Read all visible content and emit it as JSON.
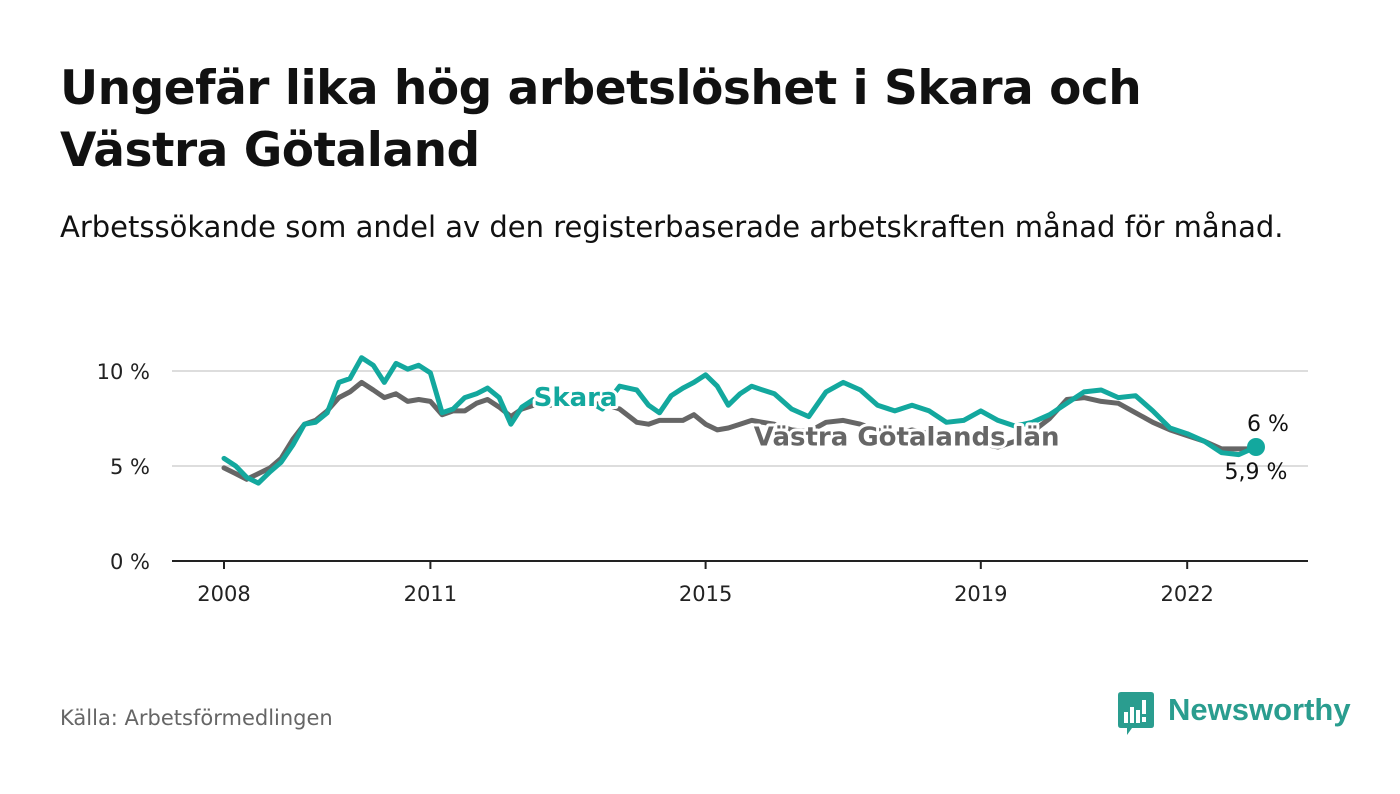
{
  "title": "Ungefär lika hög arbetslöshet i Skara och Västra Götaland",
  "subtitle": "Arbetssökande som andel av den registerbaserade arbetskraften månad för månad.",
  "source": "Källa: Arbetsförmedlingen",
  "brand": "Newsworthy",
  "icons": {
    "brand": "newsworthy-logo-icon"
  },
  "colors": {
    "skara": "#13a89e",
    "vg": "#666666",
    "grid": "#dddddd",
    "axis": "#222222",
    "brand": "#2a9d8f"
  },
  "chart_data": {
    "type": "line",
    "title": "Ungefär lika hög arbetslöshet i Skara och Västra Götaland",
    "xlabel": "",
    "ylabel": "",
    "xlim": [
      2008.0,
      2023.0
    ],
    "ylim": [
      0,
      10
    ],
    "y_ticks": [
      0,
      5,
      10
    ],
    "y_tick_labels": [
      "0 %",
      "5 %",
      "10 %"
    ],
    "x_ticks": [
      2008,
      2011,
      2015,
      2019,
      2022
    ],
    "x_tick_labels": [
      "2008",
      "2011",
      "2015",
      "2019",
      "2022"
    ],
    "grid": true,
    "series": [
      {
        "name": "Skara",
        "label": "Skara",
        "end_label": "6 %",
        "x": [
          2008.0,
          2008.17,
          2008.33,
          2008.5,
          2008.67,
          2008.83,
          2009.0,
          2009.17,
          2009.33,
          2009.5,
          2009.67,
          2009.83,
          2010.0,
          2010.17,
          2010.33,
          2010.5,
          2010.67,
          2010.83,
          2011.0,
          2011.17,
          2011.33,
          2011.5,
          2011.67,
          2011.83,
          2012.0,
          2012.17,
          2012.33,
          2012.5,
          2012.75,
          2013.0,
          2013.25,
          2013.5,
          2013.75,
          2014.0,
          2014.17,
          2014.33,
          2014.5,
          2014.67,
          2014.83,
          2015.0,
          2015.17,
          2015.33,
          2015.5,
          2015.67,
          2015.83,
          2016.0,
          2016.25,
          2016.5,
          2016.75,
          2017.0,
          2017.25,
          2017.5,
          2017.75,
          2018.0,
          2018.25,
          2018.5,
          2018.75,
          2019.0,
          2019.25,
          2019.5,
          2019.75,
          2020.0,
          2020.25,
          2020.5,
          2020.75,
          2021.0,
          2021.25,
          2021.5,
          2021.75,
          2022.0,
          2022.25,
          2022.5,
          2022.75,
          2023.0
        ],
        "y": [
          5.4,
          5.0,
          4.4,
          4.1,
          4.7,
          5.2,
          6.1,
          7.2,
          7.3,
          7.8,
          9.4,
          9.6,
          10.7,
          10.3,
          9.4,
          10.4,
          10.1,
          10.3,
          9.9,
          7.8,
          8.0,
          8.6,
          8.8,
          9.1,
          8.6,
          7.2,
          8.1,
          8.5,
          8.3,
          8.2,
          8.5,
          8.0,
          9.2,
          9.0,
          8.2,
          7.8,
          8.7,
          9.1,
          9.4,
          9.8,
          9.2,
          8.2,
          8.8,
          9.2,
          9.0,
          8.8,
          8.0,
          7.6,
          8.9,
          9.4,
          9.0,
          8.2,
          7.9,
          8.2,
          7.9,
          7.3,
          7.4,
          7.9,
          7.4,
          7.1,
          7.3,
          7.7,
          8.3,
          8.9,
          9.0,
          8.6,
          8.7,
          7.9,
          7.0,
          6.7,
          6.3,
          5.7,
          5.6,
          6.0
        ]
      },
      {
        "name": "Västra Götalands län",
        "label": "Västra Götalands län",
        "end_label": "5,9 %",
        "x": [
          2008.0,
          2008.17,
          2008.33,
          2008.5,
          2008.67,
          2008.83,
          2009.0,
          2009.17,
          2009.33,
          2009.5,
          2009.67,
          2009.83,
          2010.0,
          2010.17,
          2010.33,
          2010.5,
          2010.67,
          2010.83,
          2011.0,
          2011.17,
          2011.33,
          2011.5,
          2011.67,
          2011.83,
          2012.0,
          2012.17,
          2012.33,
          2012.5,
          2012.75,
          2013.0,
          2013.25,
          2013.5,
          2013.75,
          2014.0,
          2014.17,
          2014.33,
          2014.5,
          2014.67,
          2014.83,
          2015.0,
          2015.17,
          2015.33,
          2015.5,
          2015.67,
          2015.83,
          2016.0,
          2016.25,
          2016.5,
          2016.75,
          2017.0,
          2017.25,
          2017.5,
          2017.75,
          2018.0,
          2018.25,
          2018.5,
          2018.75,
          2019.0,
          2019.25,
          2019.5,
          2019.75,
          2020.0,
          2020.25,
          2020.5,
          2020.75,
          2021.0,
          2021.25,
          2021.5,
          2021.75,
          2022.0,
          2022.25,
          2022.5,
          2022.75,
          2023.0
        ],
        "y": [
          4.9,
          4.6,
          4.3,
          4.6,
          4.9,
          5.4,
          6.4,
          7.2,
          7.4,
          7.9,
          8.6,
          8.9,
          9.4,
          9.0,
          8.6,
          8.8,
          8.4,
          8.5,
          8.4,
          7.7,
          7.9,
          7.9,
          8.3,
          8.5,
          8.1,
          7.6,
          8.0,
          8.2,
          8.2,
          8.3,
          8.2,
          8.3,
          8.0,
          7.3,
          7.2,
          7.4,
          7.4,
          7.4,
          7.7,
          7.2,
          6.9,
          7.0,
          7.2,
          7.4,
          7.3,
          7.2,
          6.9,
          6.8,
          7.3,
          7.4,
          7.2,
          6.9,
          6.7,
          6.9,
          6.7,
          6.4,
          6.2,
          6.2,
          6.0,
          6.3,
          6.8,
          7.5,
          8.5,
          8.6,
          8.4,
          8.3,
          7.8,
          7.3,
          6.9,
          6.6,
          6.3,
          5.9,
          5.9,
          5.9
        ]
      }
    ]
  }
}
